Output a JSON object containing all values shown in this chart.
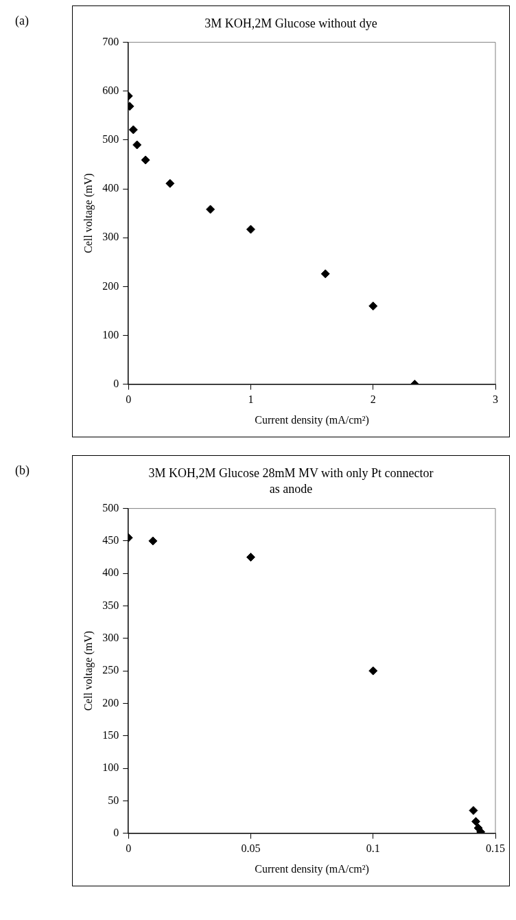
{
  "chart_data": [
    {
      "type": "scatter",
      "title": "3M KOH,2M Glucose without dye",
      "xlabel": "Current density (mA/cm²)",
      "ylabel": "Cell voltage (mV)",
      "annotations": [
        "(a)"
      ],
      "marker": "diamond",
      "series": [
        {
          "color": "#000000",
          "x": [
            0.0,
            0.01,
            0.04,
            0.07,
            0.14,
            0.34,
            0.67,
            1.0,
            1.61,
            2.0,
            2.34
          ],
          "values": [
            590,
            569,
            521,
            490,
            459,
            411,
            358,
            317,
            226,
            160,
            0
          ]
        }
      ],
      "xlim": [
        0,
        3
      ],
      "xticks": [
        0,
        1,
        2,
        3
      ],
      "ylim": [
        0,
        700
      ],
      "yticks": [
        0,
        100,
        200,
        300,
        400,
        500,
        600,
        700
      ]
    },
    {
      "type": "scatter",
      "title": "3M KOH,2M Glucose 28mM MV with only Pt connector as anode",
      "xlabel": "Current density (mA/cm²)",
      "ylabel": "Cell voltage (mV)",
      "annotations": [
        "(b)"
      ],
      "marker": "diamond",
      "series": [
        {
          "color": "#000000",
          "x": [
            0.0,
            0.01,
            0.05,
            0.1,
            0.141,
            0.142,
            0.143,
            0.144
          ],
          "values": [
            455,
            450,
            425,
            250,
            35,
            18,
            8,
            2
          ]
        }
      ],
      "xlim": [
        0,
        0.15
      ],
      "xticks": [
        0,
        0.05,
        0.1,
        0.15
      ],
      "ylim": [
        0,
        500
      ],
      "yticks": [
        0,
        50,
        100,
        150,
        200,
        250,
        300,
        350,
        400,
        450,
        500
      ]
    }
  ]
}
